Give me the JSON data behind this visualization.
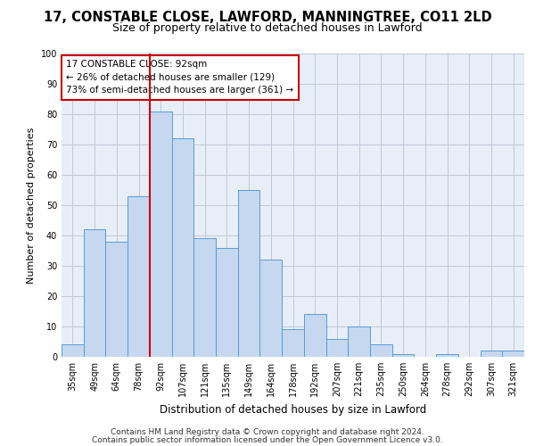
{
  "title1": "17, CONSTABLE CLOSE, LAWFORD, MANNINGTREE, CO11 2LD",
  "title2": "Size of property relative to detached houses in Lawford",
  "xlabel": "Distribution of detached houses by size in Lawford",
  "ylabel": "Number of detached properties",
  "footer1": "Contains HM Land Registry data © Crown copyright and database right 2024.",
  "footer2": "Contains public sector information licensed under the Open Government Licence v3.0.",
  "annotation_line1": "17 CONSTABLE CLOSE: 92sqm",
  "annotation_line2": "← 26% of detached houses are smaller (129)",
  "annotation_line3": "73% of semi-detached houses are larger (361) →",
  "bar_categories": [
    "35sqm",
    "49sqm",
    "64sqm",
    "78sqm",
    "92sqm",
    "107sqm",
    "121sqm",
    "135sqm",
    "149sqm",
    "164sqm",
    "178sqm",
    "192sqm",
    "207sqm",
    "221sqm",
    "235sqm",
    "250sqm",
    "264sqm",
    "278sqm",
    "292sqm",
    "307sqm",
    "321sqm"
  ],
  "bar_values": [
    4,
    42,
    38,
    53,
    81,
    72,
    39,
    36,
    55,
    32,
    9,
    14,
    6,
    10,
    4,
    1,
    0,
    1,
    0,
    2,
    2
  ],
  "bar_color": "#c5d8f0",
  "bar_edge_color": "#5b9bd5",
  "vline_color": "#cc0000",
  "vline_x_index": 4,
  "ylim": [
    0,
    100
  ],
  "yticks": [
    0,
    10,
    20,
    30,
    40,
    50,
    60,
    70,
    80,
    90,
    100
  ],
  "grid_color": "#c0c8d8",
  "background_color": "#e8eef8",
  "annotation_box_color": "#cc0000",
  "title1_fontsize": 10.5,
  "title2_fontsize": 9,
  "annotation_fontsize": 7.5,
  "tick_fontsize": 7,
  "ylabel_fontsize": 8,
  "xlabel_fontsize": 8.5,
  "footer_fontsize": 6.5
}
